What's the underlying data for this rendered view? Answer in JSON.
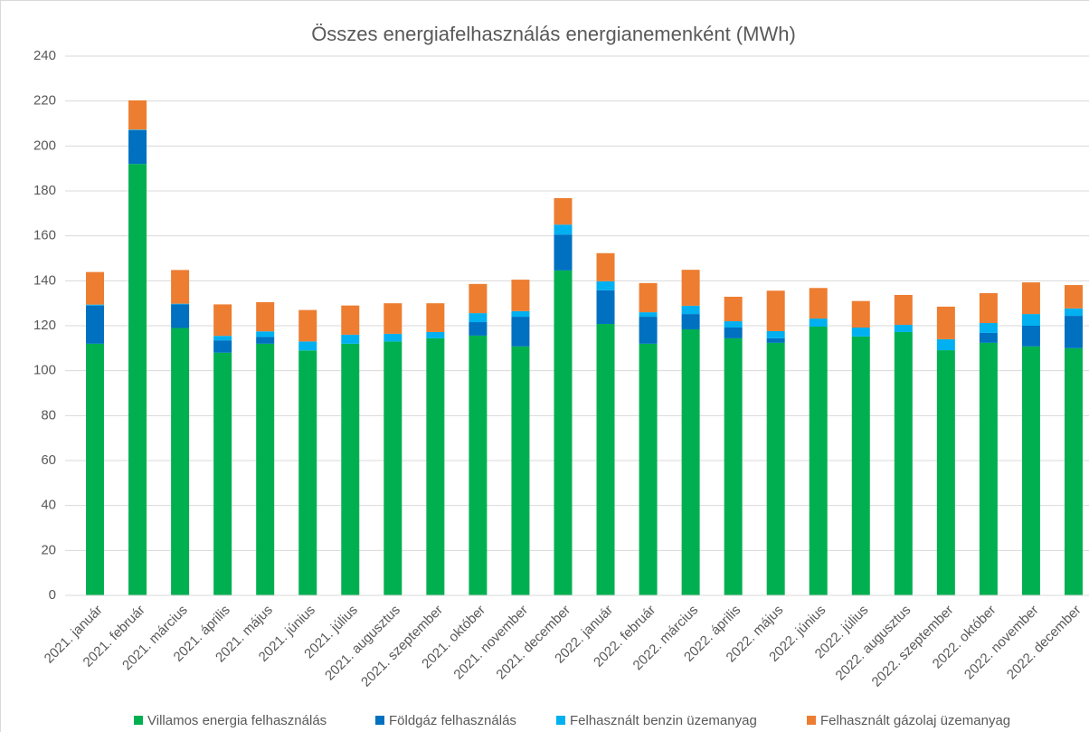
{
  "chart_data": {
    "type": "stacked_bar",
    "title": "Összes energiafelhasználás energianemenként (MWh)",
    "categories": [
      "2021. január",
      "2021. február",
      "2021. március",
      "2021. április",
      "2021. május",
      "2021. június",
      "2021. július",
      "2021. augusztus",
      "2021. szeptember",
      "2021. október",
      "2021. november",
      "2021. december",
      "2022. január",
      "2022. február",
      "2022. március",
      "2022. április",
      "2022. május",
      "2022. június",
      "2022. július",
      "2022. augusztus",
      "2022. szeptember",
      "2022. október",
      "2022. november",
      "2022. december"
    ],
    "series": [
      {
        "name": "Villamos energia felhasználás",
        "color": "#00b050",
        "values": [
          112,
          192,
          119,
          108,
          112,
          109,
          112,
          113,
          114.4,
          115.6,
          110.8,
          144.6,
          120.8,
          112,
          118.4,
          114.4,
          112.4,
          119.6,
          115.2,
          117.2,
          109.1,
          112.4,
          110.8,
          110
        ]
      },
      {
        "name": "Földgáz felhasználás",
        "color": "#0070c0",
        "values": [
          17,
          15,
          10.5,
          5.5,
          3,
          0,
          0,
          0,
          0,
          6,
          13.2,
          16,
          15,
          12,
          6.8,
          4.8,
          2,
          0,
          0,
          0,
          0,
          4.4,
          9.2,
          14.4
        ]
      },
      {
        "name": "Felhasznált benzin üzemanyag",
        "color": "#00b0f0",
        "values": [
          0.4,
          0.3,
          0.3,
          2,
          2.5,
          4,
          4,
          3.4,
          2.8,
          4,
          2.5,
          4.4,
          4,
          2,
          3.7,
          2.8,
          3.2,
          3.6,
          4,
          3.2,
          4.9,
          4.4,
          5.2,
          3.3
        ]
      },
      {
        "name": "Felhasznált gázolaj üzemanyag",
        "color": "#ed7d31",
        "values": [
          14.5,
          13,
          15,
          14,
          13,
          14,
          13,
          13.6,
          12.8,
          13,
          14,
          11.8,
          12.5,
          13,
          16,
          10.9,
          18,
          13.6,
          11.8,
          13.3,
          14.5,
          13.3,
          14.1,
          10.4
        ]
      }
    ],
    "ylim": [
      0,
      240
    ],
    "yticks": [
      0,
      20,
      40,
      60,
      80,
      100,
      120,
      140,
      160,
      180,
      200,
      220,
      240
    ],
    "grid": true,
    "legend": "bottom"
  }
}
